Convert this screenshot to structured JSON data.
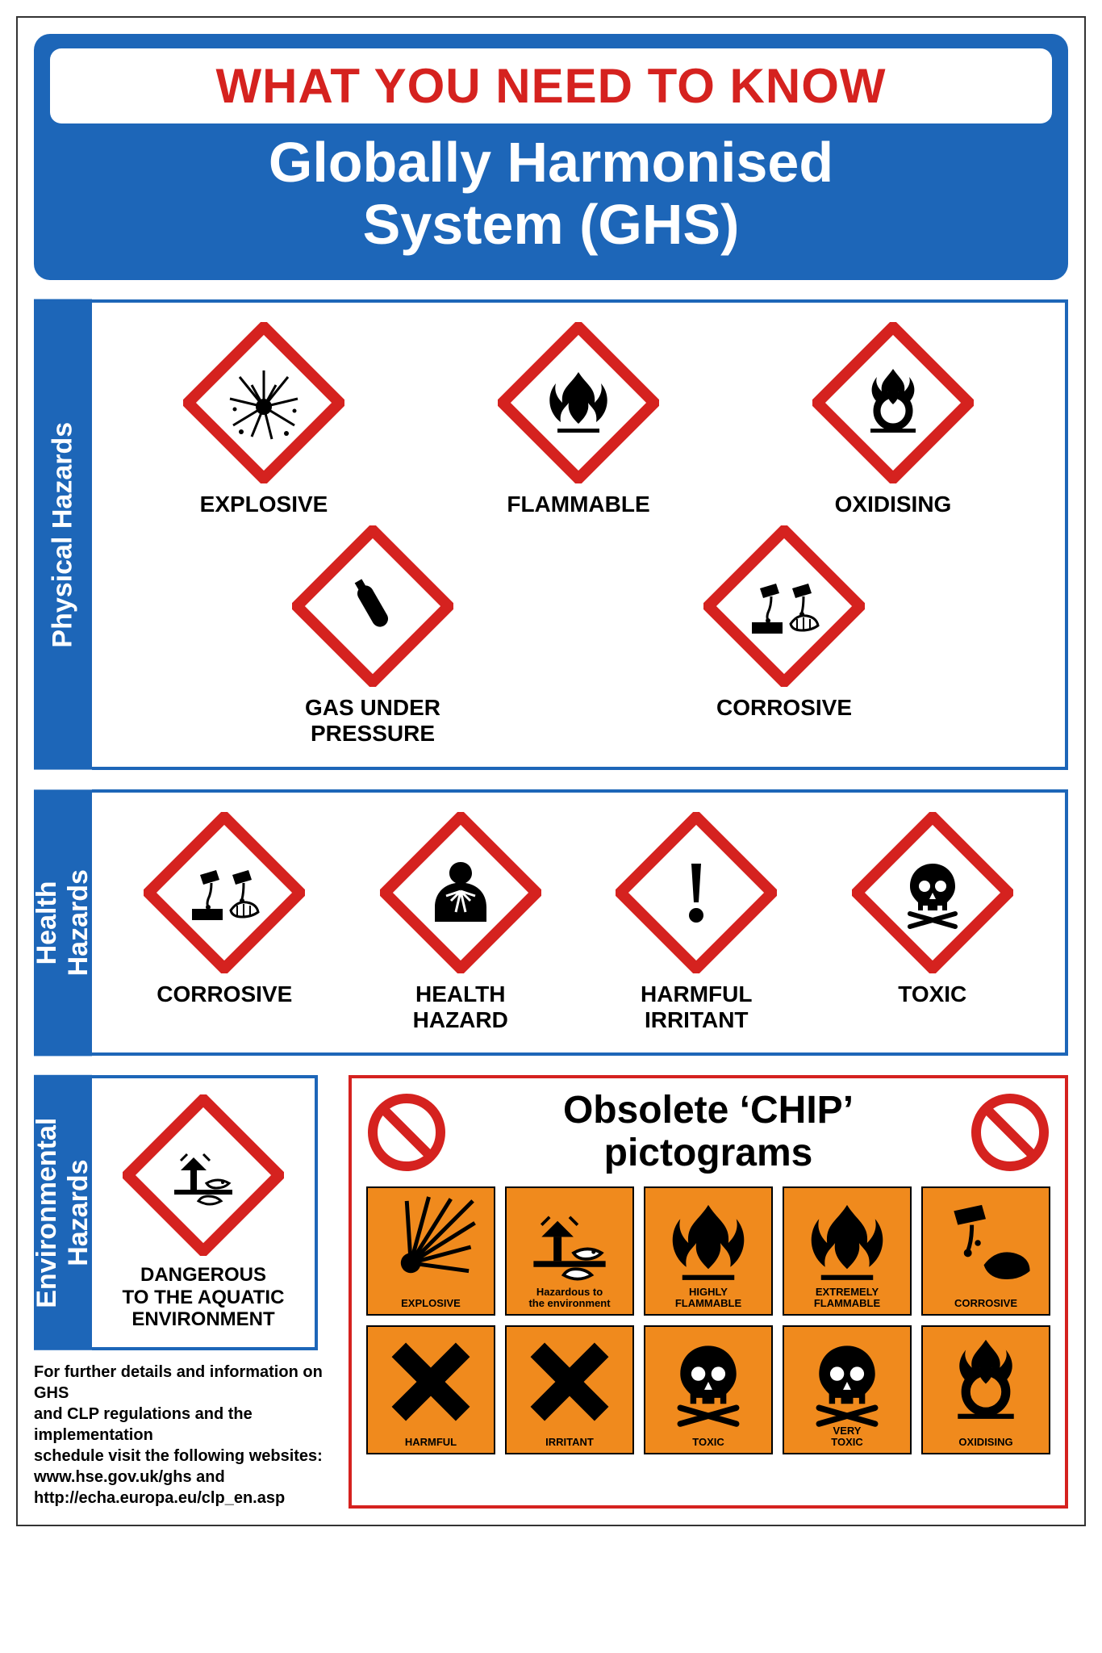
{
  "colors": {
    "blue": "#1d66b8",
    "red": "#d5221f",
    "orange": "#f08a1d",
    "black": "#000000",
    "white": "#ffffff",
    "diamond_border": "#d5221f",
    "diamond_border_width": 12
  },
  "typography": {
    "header_top_fontsize": 60,
    "header_sub_fontsize": 70,
    "tab_fontsize": 34,
    "hz_label_fontsize": 28,
    "chip_title_fontsize": 48,
    "chip_label_fontsize": 13,
    "footer_fontsize": 20,
    "font_family": "Arial"
  },
  "header": {
    "top": "WHAT YOU NEED TO KNOW",
    "sub_line1": "Globally Harmonised",
    "sub_line2": "System (GHS)"
  },
  "sections": {
    "physical": {
      "tab": "Physical Hazards",
      "row1": [
        {
          "label": "EXPLOSIVE",
          "icon": "explosive"
        },
        {
          "label": "FLAMMABLE",
          "icon": "flammable"
        },
        {
          "label": "OXIDISING",
          "icon": "oxidising"
        }
      ],
      "row2": [
        {
          "label": "GAS UNDER\nPRESSURE",
          "icon": "gas"
        },
        {
          "label": "CORROSIVE",
          "icon": "corrosive"
        }
      ]
    },
    "health": {
      "tab": "Health\nHazards",
      "items": [
        {
          "label": "CORROSIVE",
          "icon": "corrosive"
        },
        {
          "label": "HEALTH\nHAZARD",
          "icon": "healthhazard"
        },
        {
          "label": "HARMFUL\nIRRITANT",
          "icon": "exclaim"
        },
        {
          "label": "TOXIC",
          "icon": "skull"
        }
      ]
    },
    "environmental": {
      "tab": "Environmental\nHazards",
      "item": {
        "label": "DANGEROUS\nTO THE AQUATIC\nENVIRONMENT",
        "icon": "aquatic"
      }
    }
  },
  "chip": {
    "title_line1": "Obsolete ‘CHIP’",
    "title_line2": "pictograms",
    "cells": [
      {
        "label": "EXPLOSIVE",
        "icon": "c_explosive"
      },
      {
        "label": "Hazardous to\nthe environment",
        "icon": "c_env"
      },
      {
        "label": "HIGHLY\nFLAMMABLE",
        "icon": "c_flame"
      },
      {
        "label": "EXTREMELY\nFLAMMABLE",
        "icon": "c_flame"
      },
      {
        "label": "CORROSIVE",
        "icon": "c_corrosive"
      },
      {
        "label": "HARMFUL",
        "icon": "c_x"
      },
      {
        "label": "IRRITANT",
        "icon": "c_x"
      },
      {
        "label": "TOXIC",
        "icon": "c_skull"
      },
      {
        "label": "VERY\nTOXIC",
        "icon": "c_skull"
      },
      {
        "label": "OXIDISING",
        "icon": "c_oxid"
      }
    ]
  },
  "footer": {
    "line1": "For further details and information on GHS",
    "line2": "and CLP regulations and the implementation",
    "line3": "schedule visit the following websites:",
    "line4": "www.hse.gov.uk/ghs and",
    "line5": "http://echa.europa.eu/clp_en.asp"
  }
}
